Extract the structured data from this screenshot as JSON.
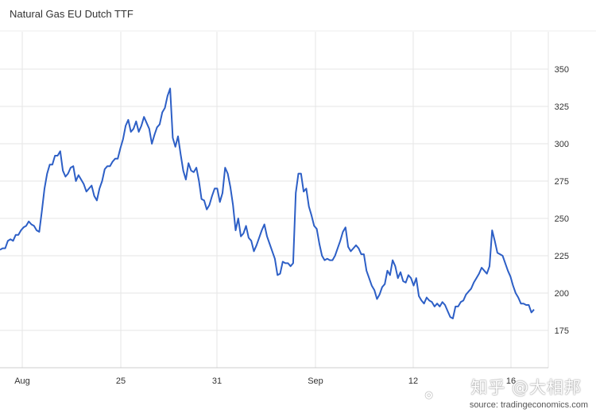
{
  "title": "Natural Gas EU Dutch TTF",
  "source": "source: tradingeconomics.com",
  "watermark": "知乎 @大相邦",
  "chart_data": {
    "type": "line",
    "title": "Natural Gas EU Dutch TTF",
    "xlabel": "",
    "ylabel": "",
    "x_ticks": [
      "Aug",
      "25",
      "31",
      "Sep",
      "12",
      "16"
    ],
    "y_ticks": [
      175,
      200,
      225,
      250,
      275,
      300,
      325,
      350
    ],
    "ylim": [
      150,
      375
    ],
    "grid": true,
    "series": [
      {
        "color": "#2d5fc6",
        "values": [
          229,
          230,
          230,
          235,
          236,
          235,
          239,
          239,
          242,
          244,
          245,
          248,
          246,
          245,
          242,
          241,
          255,
          270,
          280,
          286,
          286,
          292,
          292,
          295,
          282,
          278,
          280,
          284,
          285,
          275,
          279,
          276,
          273,
          268,
          270,
          272,
          265,
          262,
          270,
          275,
          283,
          285,
          285,
          288,
          290,
          290,
          297,
          303,
          312,
          316,
          308,
          310,
          315,
          308,
          312,
          318,
          314,
          310,
          300,
          306,
          311,
          313,
          321,
          324,
          332,
          337,
          304,
          298,
          305,
          293,
          282,
          276,
          287,
          282,
          281,
          284,
          275,
          263,
          262,
          256,
          259,
          265,
          270,
          270,
          261,
          267,
          284,
          280,
          271,
          259,
          242,
          250,
          238,
          240,
          245,
          237,
          235,
          228,
          232,
          237,
          242,
          246,
          238,
          233,
          228,
          223,
          212,
          213,
          221,
          220,
          220,
          218,
          220,
          267,
          280,
          280,
          268,
          270,
          258,
          252,
          245,
          243,
          233,
          225,
          222,
          223,
          222,
          222,
          225,
          230,
          235,
          241,
          244,
          231,
          228,
          230,
          232,
          230,
          226,
          226,
          215,
          210,
          205,
          202,
          196,
          199,
          204,
          206,
          215,
          212,
          222,
          218,
          210,
          214,
          208,
          207,
          212,
          210,
          205,
          210,
          198,
          195,
          193,
          197,
          195,
          194,
          191,
          193,
          191,
          194,
          192,
          188,
          184,
          183,
          191,
          191,
          194,
          195,
          199,
          201,
          203,
          207,
          210,
          213,
          217,
          215,
          213,
          218,
          242,
          235,
          227,
          226,
          225,
          220,
          215,
          211,
          205,
          200,
          197,
          193,
          193,
          192,
          192,
          187,
          189
        ]
      }
    ]
  }
}
